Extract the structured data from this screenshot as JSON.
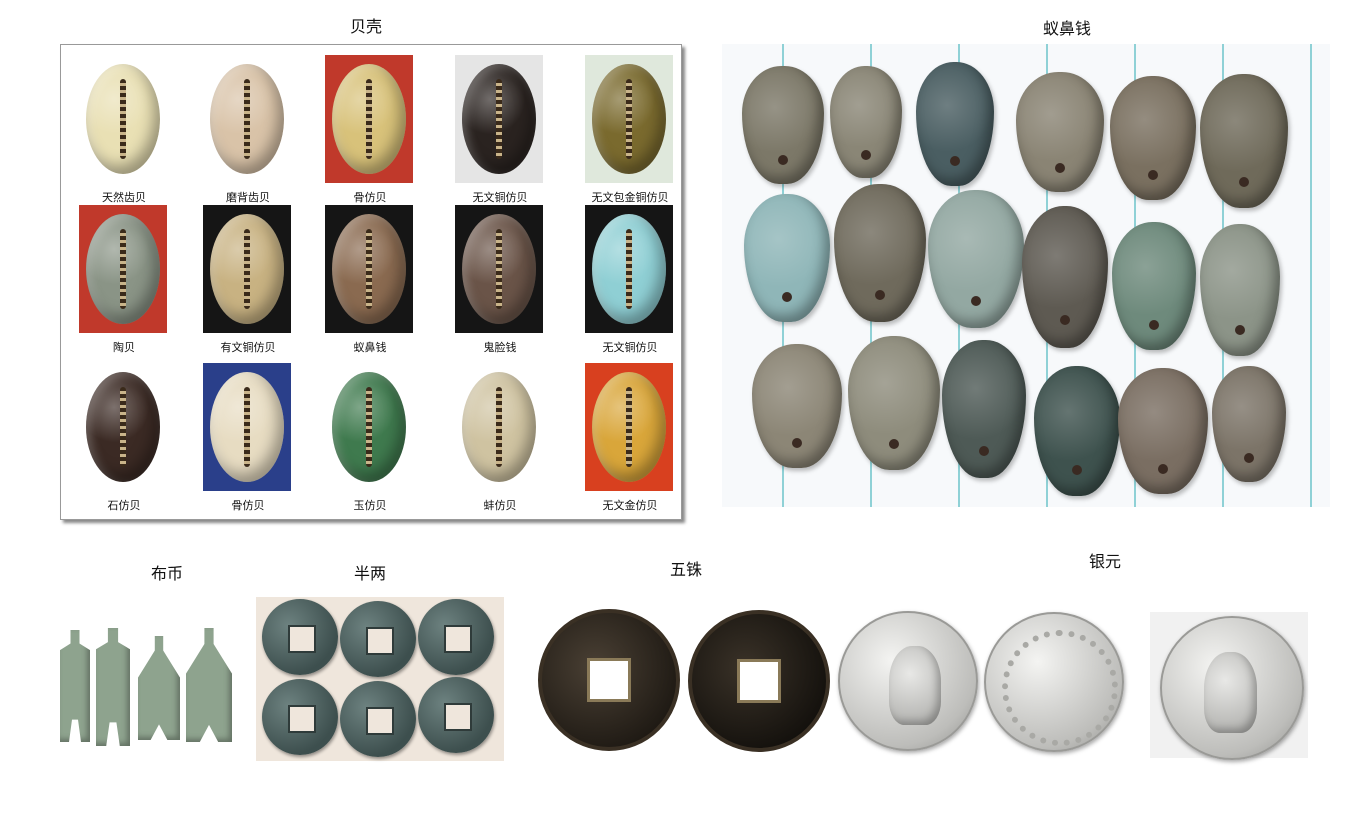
{
  "titles": {
    "shells": "贝壳",
    "antnose": "蚁鼻钱",
    "spade": "布币",
    "banliang": "半两",
    "wuzhu": "五铢",
    "silver": "银元"
  },
  "shell_items": [
    {
      "label": "天然齿贝",
      "color": "#e9e0b4",
      "bg": "#ffffff"
    },
    {
      "label": "磨背齿贝",
      "color": "#d9c3a8",
      "bg": "#ffffff"
    },
    {
      "label": "骨仿贝",
      "color": "#d8c27a",
      "bg": "#c0392b"
    },
    {
      "label": "无文铜仿贝",
      "color": "#2a2320",
      "bg": "#e5e5e5"
    },
    {
      "label": "无文包金铜仿贝",
      "color": "#7a6a2e",
      "bg": "#dfe8dc"
    },
    {
      "label": "陶贝",
      "color": "#8a9486",
      "bg": "#c0392b"
    },
    {
      "label": "有文铜仿贝",
      "color": "#c8b282",
      "bg": "#151515"
    },
    {
      "label": "蚁鼻钱",
      "color": "#8a6a50",
      "bg": "#151515"
    },
    {
      "label": "鬼脸钱",
      "color": "#6a5448",
      "bg": "#151515"
    },
    {
      "label": "无文铜仿贝",
      "color": "#8fcfd4",
      "bg": "#151515"
    },
    {
      "label": "石仿贝",
      "color": "#3b2a24",
      "bg": "#ffffff"
    },
    {
      "label": "骨仿贝",
      "color": "#e7dcc2",
      "bg": "#2a3f8a"
    },
    {
      "label": "玉仿贝",
      "color": "#3f7a4e",
      "bg": "#ffffff"
    },
    {
      "label": "蚌仿贝",
      "color": "#cfc3a1",
      "bg": "#ffffff"
    },
    {
      "label": "无文金仿贝",
      "color": "#d9a63a",
      "bg": "#d8401f"
    }
  ],
  "antnose_glyph": "",
  "wuzhu_chars": {
    "left": "",
    "right": ""
  },
  "silver_chars": {
    "back": ""
  }
}
